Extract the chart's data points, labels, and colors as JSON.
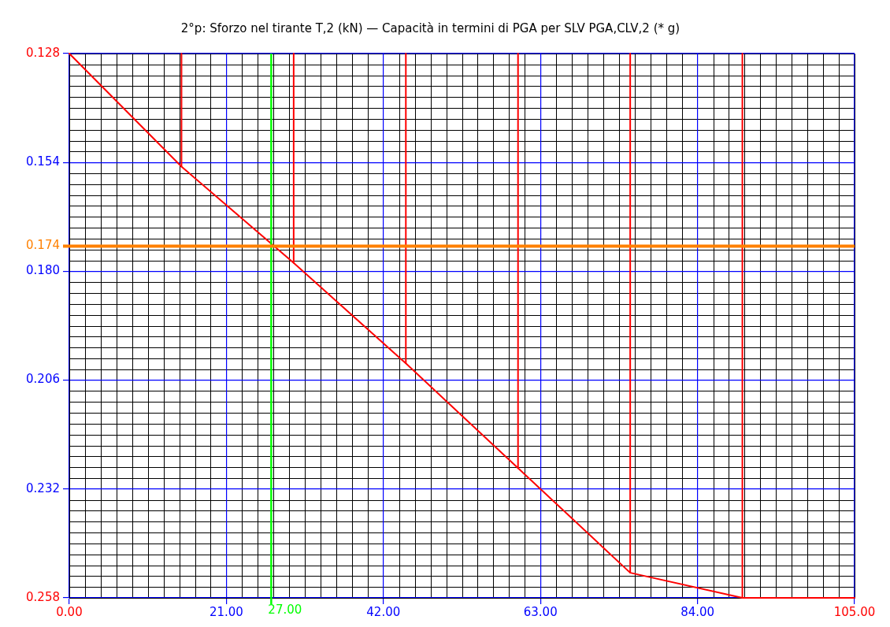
{
  "chart_data": {
    "type": "line",
    "title": "2°p: Sforzo nel tirante T,2 (kN) — Capacità in termini di PGA per SLV PGA,CLV,2 (* g)",
    "x": [
      0,
      15,
      30,
      45,
      60,
      75,
      90,
      105
    ],
    "series": [
      {
        "color": "#ff0000",
        "values": [
          0.128,
          0.155,
          0.178,
          0.202,
          0.227,
          0.252,
          0.258,
          0.258
        ]
      },
      {
        "color": "#ff0000",
        "x": [
          15,
          15
        ],
        "values": [
          0.128,
          0.155
        ]
      },
      {
        "color": "#ff0000",
        "x": [
          30,
          30
        ],
        "values": [
          0.128,
          0.178
        ]
      },
      {
        "color": "#ff0000",
        "x": [
          45,
          45
        ],
        "values": [
          0.128,
          0.202
        ]
      },
      {
        "color": "#ff0000",
        "x": [
          60,
          60
        ],
        "values": [
          0.128,
          0.227
        ]
      },
      {
        "color": "#ff0000",
        "x": [
          75,
          75
        ],
        "values": [
          0.128,
          0.252
        ]
      },
      {
        "color": "#ff0000",
        "x": [
          90,
          90
        ],
        "values": [
          0.128,
          0.258
        ]
      }
    ],
    "xlim": [
      0,
      105
    ],
    "xticks": [
      {
        "value": 0,
        "label": "0.00"
      },
      {
        "value": 21,
        "label": "21.00"
      },
      {
        "value": 42,
        "label": "42.00"
      },
      {
        "value": 63,
        "label": "63.00"
      },
      {
        "value": 84,
        "label": "84.00"
      },
      {
        "value": 105,
        "label": "105.00"
      }
    ],
    "ylim": [
      0.258,
      0.128
    ],
    "yticks": [
      0.128,
      0.154,
      {
        "value": 0.18,
        "label": "0.180"
      },
      0.206,
      0.232,
      0.258
    ],
    "ref_lines": [
      {
        "axis": "x",
        "value": 27,
        "label": "27.00",
        "color": "#00ff00"
      },
      {
        "axis": "y",
        "value": 0.174,
        "label": "0.174",
        "color": "#ff8000"
      }
    ],
    "grid": true,
    "marker": "none",
    "line_style": "solid",
    "legend": false
  }
}
